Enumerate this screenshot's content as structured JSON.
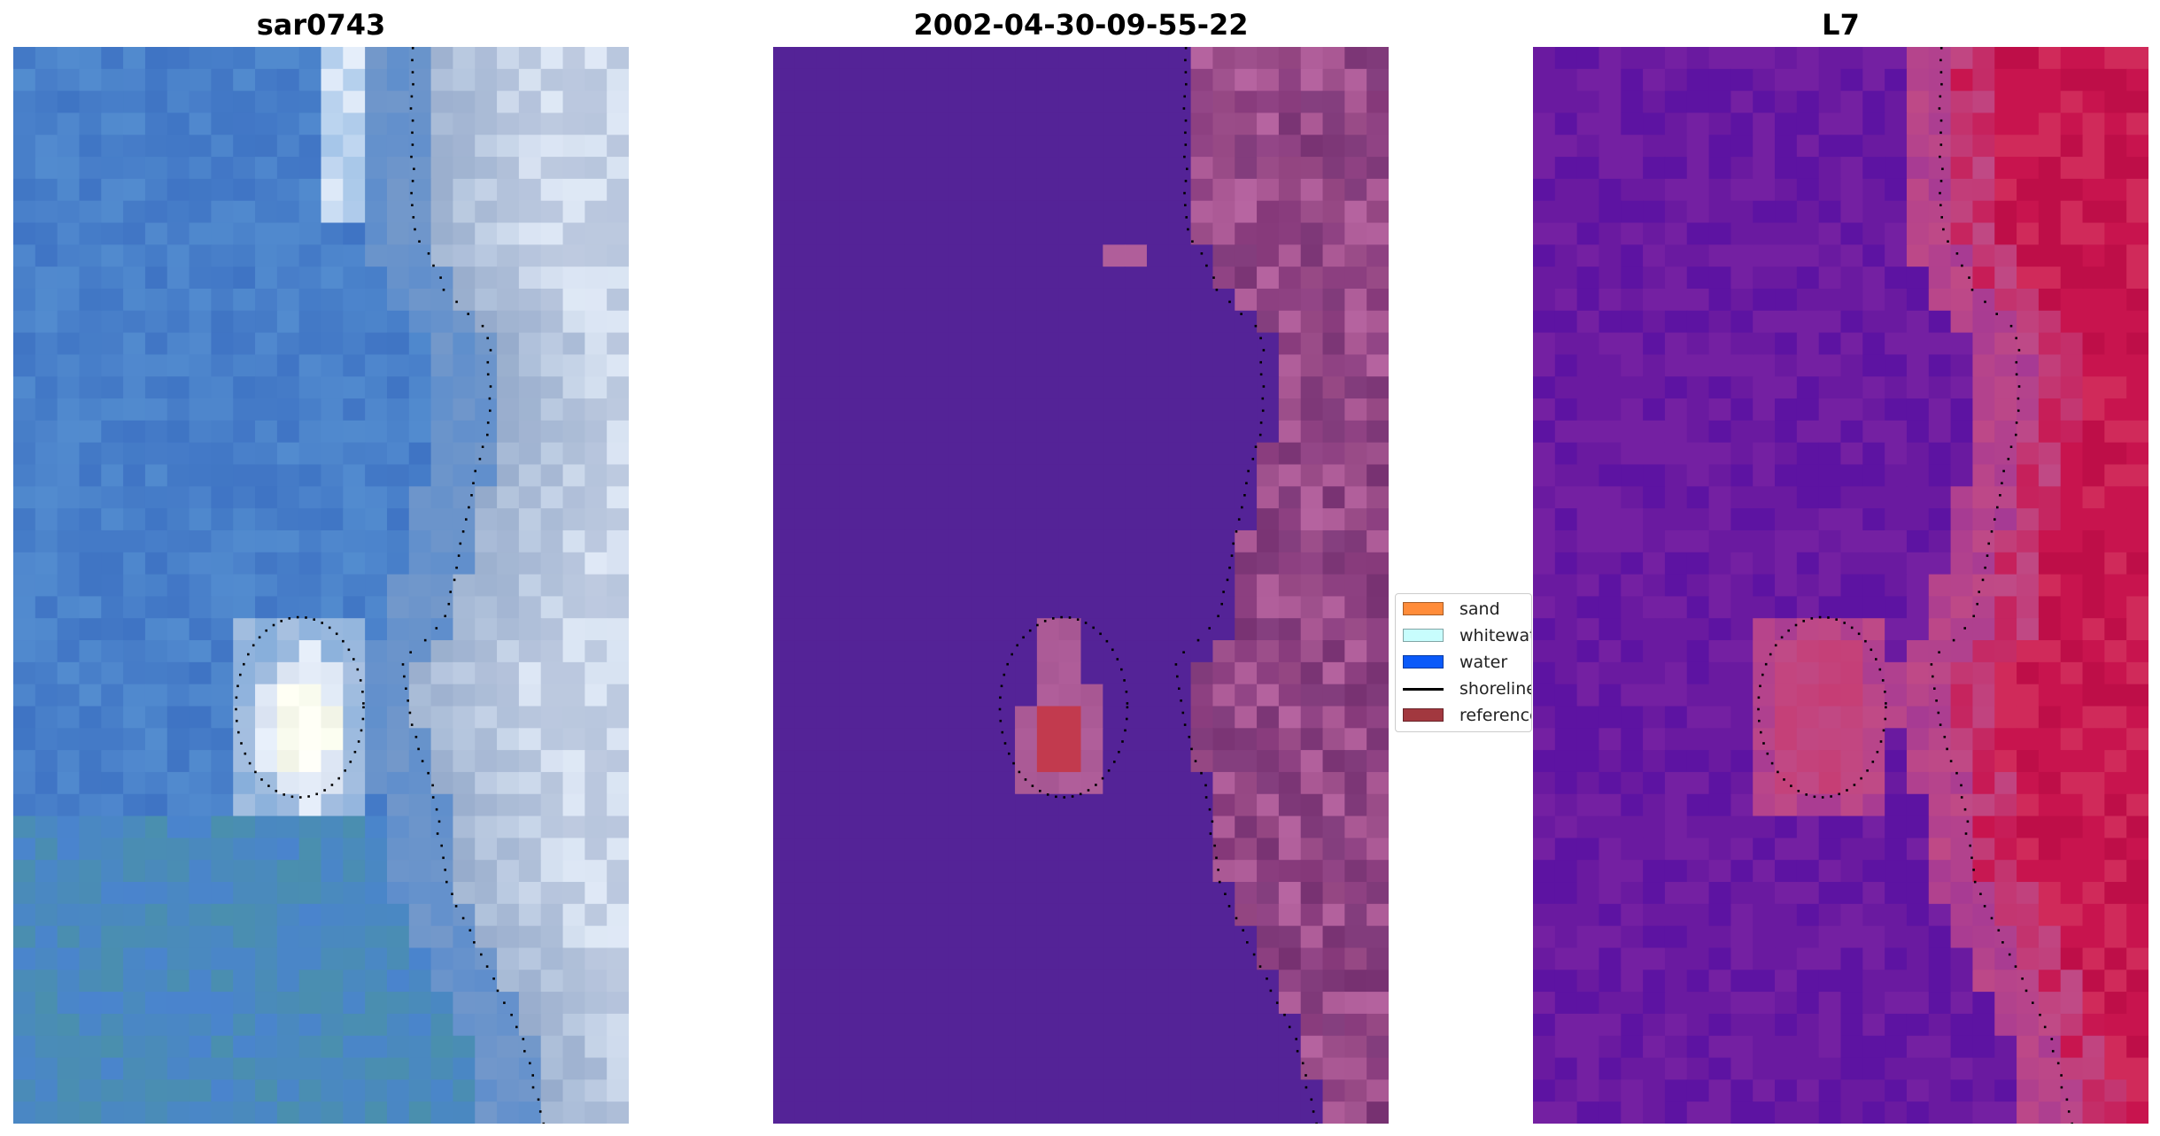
{
  "panels": [
    {
      "title": "sar0743",
      "palette": {
        "water_deep": "#3f74c4",
        "water_mid": "#4a84ce",
        "water_light": "#5b96d4",
        "teal": "#4a8fae",
        "cloud": "#c9d3e6",
        "cloud_bright": "#e8f0fb",
        "white": "#fbfdf0",
        "gray": "#8fa6c8"
      }
    },
    {
      "title": "2002-04-30-09-55-22",
      "palette": {
        "water": "#542397",
        "land_a": "#9a4c88",
        "land_b": "#8c3f80",
        "land_c": "#b05e9a",
        "land_d": "#7e3878",
        "reference": "#c23a4e"
      }
    },
    {
      "title": "L7",
      "palette": {
        "sea_a": "#6a1aa0",
        "sea_b": "#7420a2",
        "sea_c": "#5d13a2",
        "mid_a": "#a63a94",
        "mid_b": "#c04a86",
        "land_a": "#c8144e",
        "land_b": "#be0e48",
        "land_c": "#d02a5a"
      }
    }
  ],
  "legend": {
    "items": [
      {
        "label": "sand",
        "color": "#ff8c3a",
        "kind": "patch"
      },
      {
        "label": "whitewater",
        "color": "#c8fdfd",
        "kind": "patch"
      },
      {
        "label": "water",
        "color": "#0a5af9",
        "kind": "patch"
      },
      {
        "label": "shoreline",
        "color": "#000000",
        "kind": "line"
      },
      {
        "label": "reference shoreline",
        "color": "#a2383f",
        "kind": "patch"
      }
    ]
  }
}
